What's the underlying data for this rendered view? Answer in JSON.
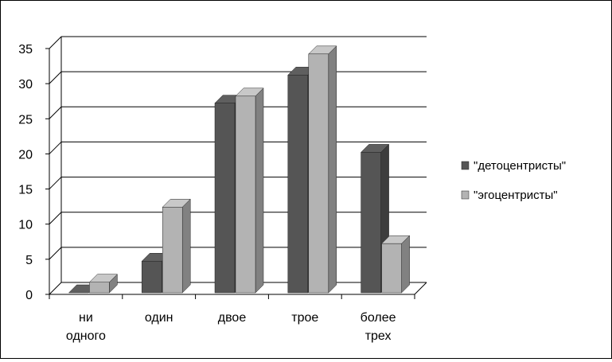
{
  "chart_data": {
    "type": "bar",
    "categories": [
      [
        "ни",
        "одного"
      ],
      [
        "один"
      ],
      [
        "двое"
      ],
      [
        "трое"
      ],
      [
        "более",
        "трех"
      ]
    ],
    "series": [
      {
        "name": "\"детоцентристы\"",
        "values": [
          0,
          4.5,
          27,
          31,
          20
        ],
        "color": "#555555"
      },
      {
        "name": "\"эгоцентристы\"",
        "values": [
          1.5,
          12.2,
          28,
          34,
          7
        ],
        "color": "#b3b3b3"
      }
    ],
    "ylim": [
      0,
      35
    ],
    "yticks": [
      0,
      5,
      10,
      15,
      20,
      25,
      30,
      35
    ],
    "grid": true,
    "legend_position": "right",
    "style": "3d-clustered-column"
  }
}
